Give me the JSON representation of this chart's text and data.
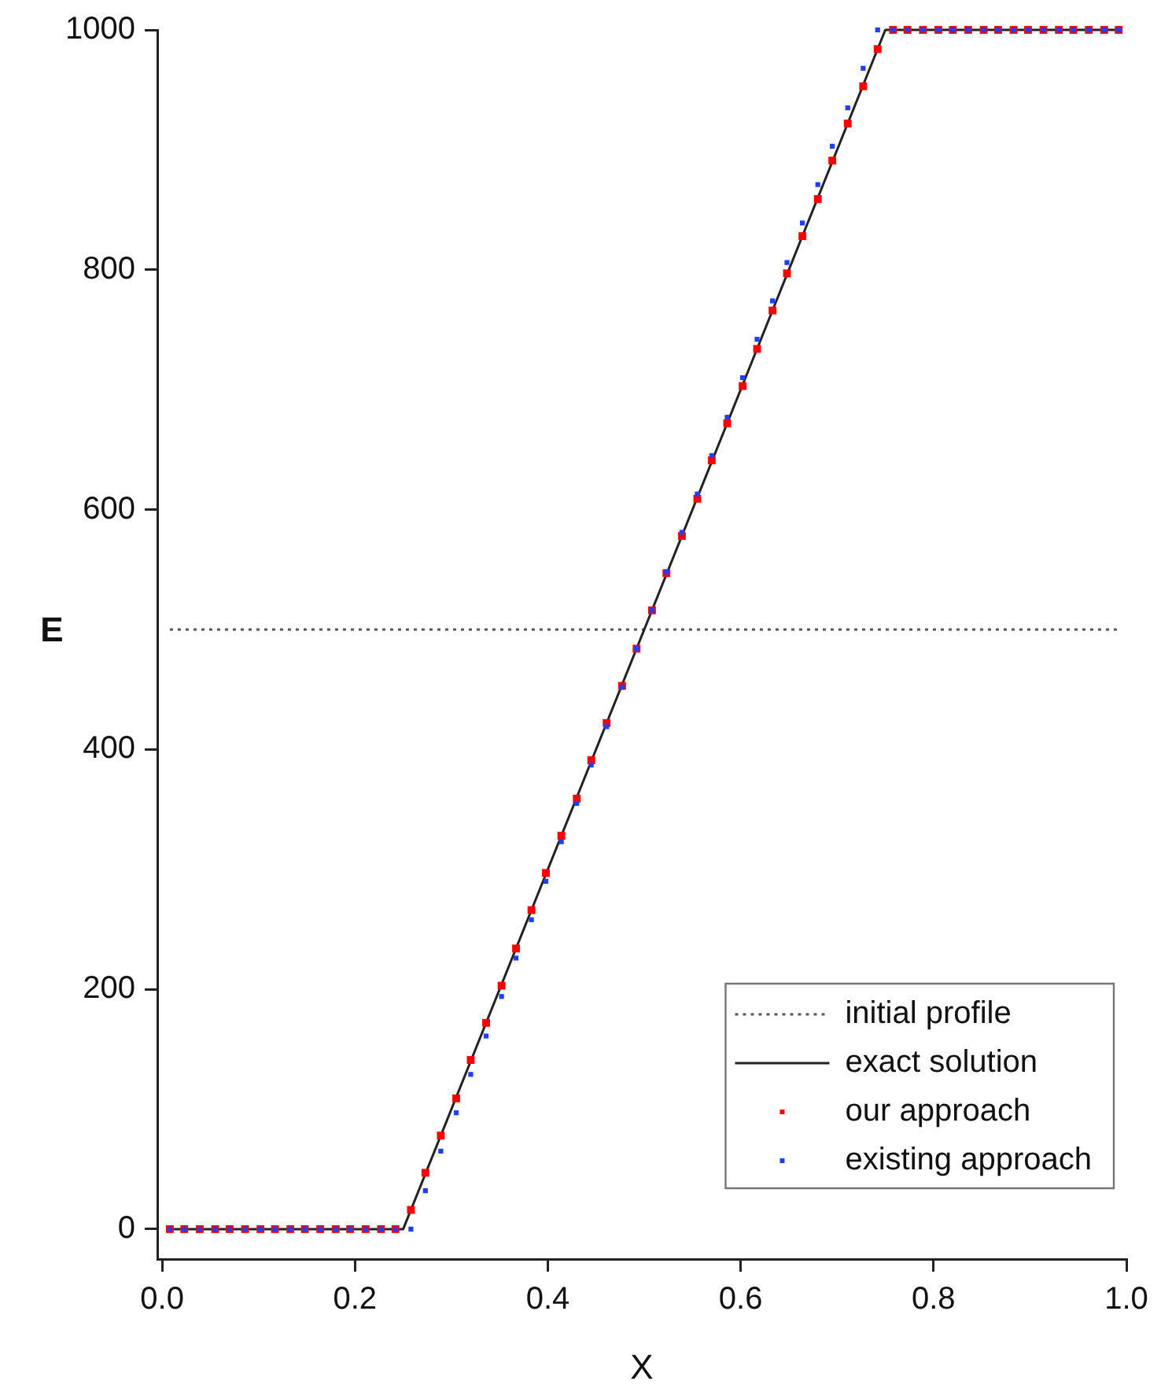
{
  "chart_data": {
    "type": "scatter",
    "xlabel": "X",
    "ylabel": "E",
    "xlim": [
      -0.005,
      1.0
    ],
    "xticks": [
      {
        "value": 0,
        "label": "0.0"
      },
      0.2,
      0.4,
      0.6,
      0.8,
      {
        "value": 1,
        "label": "1.0"
      }
    ],
    "ylim": [
      -25,
      1000
    ],
    "yticks": [
      0,
      200,
      400,
      600,
      800,
      1000
    ],
    "grid": false,
    "legend": "bottom right",
    "marker": "square",
    "x": [
      0.008,
      0.023,
      0.039,
      0.055,
      0.07,
      0.086,
      0.102,
      0.117,
      0.133,
      0.148,
      0.164,
      0.18,
      0.195,
      0.211,
      0.227,
      0.242,
      0.258,
      0.273,
      0.289,
      0.305,
      0.32,
      0.336,
      0.352,
      0.367,
      0.383,
      0.398,
      0.414,
      0.43,
      0.445,
      0.461,
      0.477,
      0.492,
      0.508,
      0.523,
      0.539,
      0.555,
      0.57,
      0.586,
      0.602,
      0.617,
      0.633,
      0.648,
      0.664,
      0.68,
      0.695,
      0.711,
      0.727,
      0.742,
      0.758,
      0.773,
      0.789,
      0.805,
      0.82,
      0.836,
      0.852,
      0.867,
      0.883,
      0.898,
      0.914,
      0.93,
      0.945,
      0.961,
      0.977,
      0.992
    ],
    "series": [
      {
        "name": "initial profile",
        "type": "line",
        "line_style": "dotted",
        "marker": "none",
        "color": "#555555",
        "x": [
          0.008,
          0.992
        ],
        "values": [
          500,
          500
        ]
      },
      {
        "name": "exact solution",
        "type": "line",
        "line_style": "solid",
        "marker": "none",
        "color": "#222222",
        "x": [
          0.008,
          0.25,
          0.75,
          0.992
        ],
        "values": [
          0,
          0,
          1000,
          1000
        ]
      },
      {
        "name": "our approach",
        "color": "#ff0000",
        "values": [
          0,
          0,
          0,
          0,
          0,
          0,
          0,
          0,
          0,
          0,
          0,
          0,
          0,
          0,
          0,
          0,
          16,
          47,
          78,
          109,
          141,
          172,
          203,
          234,
          266,
          297,
          328,
          359,
          391,
          422,
          453,
          484,
          516,
          547,
          578,
          609,
          641,
          672,
          703,
          734,
          766,
          797,
          828,
          859,
          891,
          922,
          953,
          984,
          1000,
          1000,
          1000,
          1000,
          1000,
          1000,
          1000,
          1000,
          1000,
          1000,
          1000,
          1000,
          1000,
          1000,
          1000,
          1000
        ]
      },
      {
        "name": "existing approach",
        "color": "#1f3fff",
        "values": [
          0,
          0,
          0,
          0,
          0,
          0,
          0,
          0,
          0,
          0,
          0,
          0,
          0,
          0,
          0,
          0,
          0,
          32,
          65,
          97,
          129,
          161,
          194,
          226,
          258,
          290,
          323,
          355,
          387,
          419,
          452,
          484,
          516,
          548,
          581,
          613,
          645,
          677,
          710,
          742,
          774,
          806,
          839,
          871,
          903,
          935,
          968,
          1000,
          1000,
          1000,
          1000,
          1000,
          1000,
          1000,
          1000,
          1000,
          1000,
          1000,
          1000,
          1000,
          1000,
          1000,
          1000,
          1000
        ]
      }
    ]
  }
}
